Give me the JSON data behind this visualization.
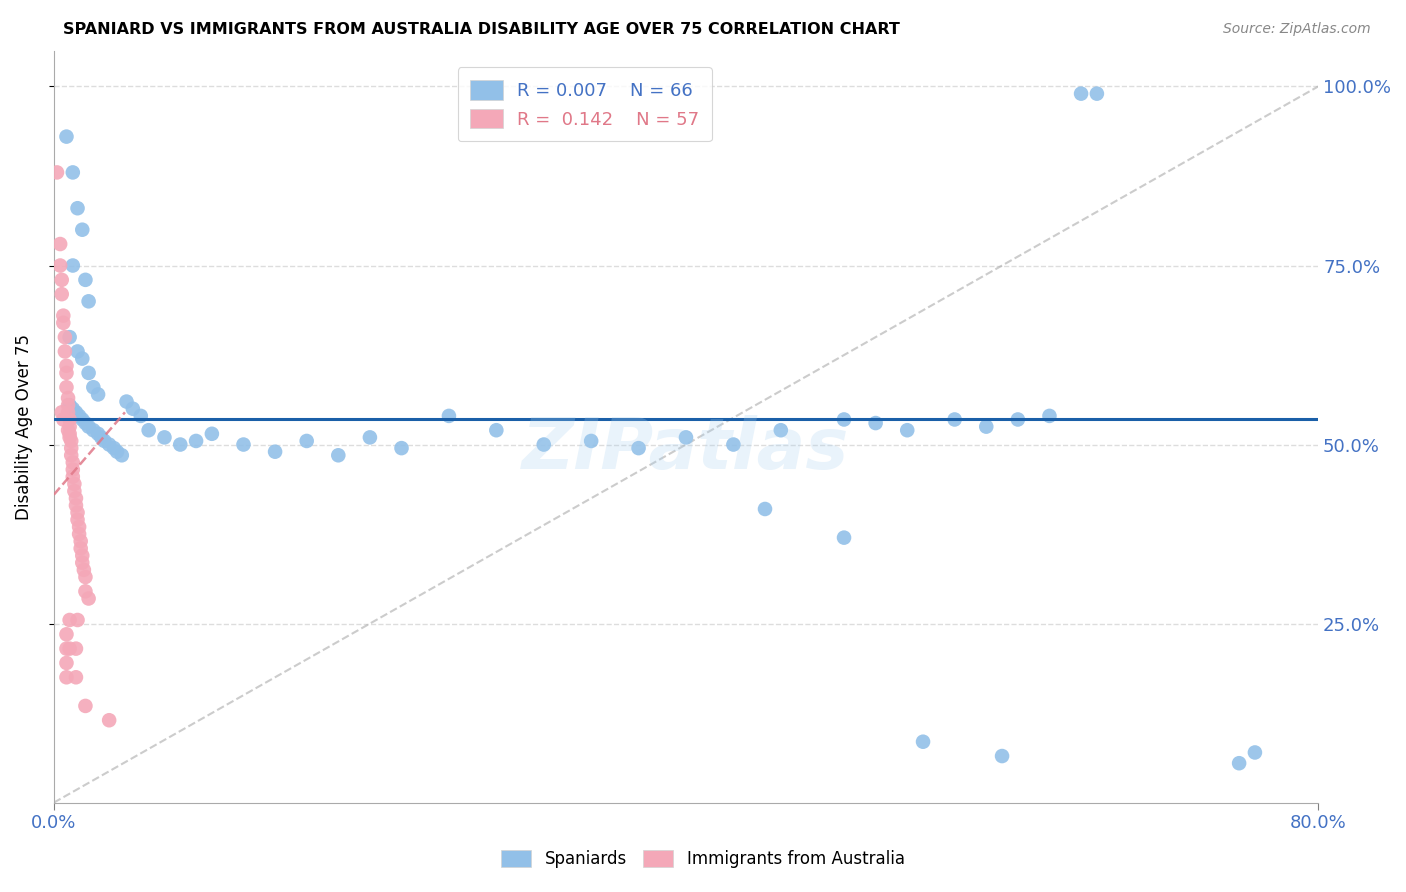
{
  "title": "SPANIARD VS IMMIGRANTS FROM AUSTRALIA DISABILITY AGE OVER 75 CORRELATION CHART",
  "source": "Source: ZipAtlas.com",
  "ylabel": "Disability Age Over 75",
  "watermark": "ZIPatlas",
  "blue_color": "#92c0e8",
  "pink_color": "#f4a8b8",
  "trendline_blue_color": "#1a5fa8",
  "trendline_pink_color": "#e07888",
  "grid_color": "#dddddd",
  "xmin": 0.0,
  "xmax": 0.8,
  "ymin": 0.0,
  "ymax": 1.05,
  "blue_trendline_y": 0.535,
  "blue_scatter": [
    [
      0.008,
      0.93
    ],
    [
      0.012,
      0.88
    ],
    [
      0.015,
      0.83
    ],
    [
      0.018,
      0.8
    ],
    [
      0.012,
      0.75
    ],
    [
      0.02,
      0.73
    ],
    [
      0.022,
      0.7
    ],
    [
      0.01,
      0.65
    ],
    [
      0.015,
      0.63
    ],
    [
      0.018,
      0.62
    ],
    [
      0.022,
      0.6
    ],
    [
      0.025,
      0.58
    ],
    [
      0.028,
      0.57
    ],
    [
      0.01,
      0.555
    ],
    [
      0.012,
      0.55
    ],
    [
      0.014,
      0.545
    ],
    [
      0.016,
      0.54
    ],
    [
      0.018,
      0.535
    ],
    [
      0.02,
      0.53
    ],
    [
      0.022,
      0.525
    ],
    [
      0.025,
      0.52
    ],
    [
      0.028,
      0.515
    ],
    [
      0.03,
      0.51
    ],
    [
      0.032,
      0.505
    ],
    [
      0.035,
      0.5
    ],
    [
      0.038,
      0.495
    ],
    [
      0.04,
      0.49
    ],
    [
      0.043,
      0.485
    ],
    [
      0.046,
      0.56
    ],
    [
      0.05,
      0.55
    ],
    [
      0.055,
      0.54
    ],
    [
      0.06,
      0.52
    ],
    [
      0.07,
      0.51
    ],
    [
      0.08,
      0.5
    ],
    [
      0.09,
      0.505
    ],
    [
      0.1,
      0.515
    ],
    [
      0.12,
      0.5
    ],
    [
      0.14,
      0.49
    ],
    [
      0.16,
      0.505
    ],
    [
      0.18,
      0.485
    ],
    [
      0.2,
      0.51
    ],
    [
      0.22,
      0.495
    ],
    [
      0.25,
      0.54
    ],
    [
      0.28,
      0.52
    ],
    [
      0.31,
      0.5
    ],
    [
      0.34,
      0.505
    ],
    [
      0.37,
      0.495
    ],
    [
      0.4,
      0.51
    ],
    [
      0.43,
      0.5
    ],
    [
      0.46,
      0.52
    ],
    [
      0.5,
      0.535
    ],
    [
      0.52,
      0.53
    ],
    [
      0.54,
      0.52
    ],
    [
      0.57,
      0.535
    ],
    [
      0.59,
      0.525
    ],
    [
      0.61,
      0.535
    ],
    [
      0.63,
      0.54
    ],
    [
      0.65,
      0.99
    ],
    [
      0.66,
      0.99
    ],
    [
      0.45,
      0.41
    ],
    [
      0.5,
      0.37
    ],
    [
      0.55,
      0.085
    ],
    [
      0.6,
      0.065
    ],
    [
      0.75,
      0.055
    ],
    [
      0.76,
      0.07
    ]
  ],
  "pink_scatter": [
    [
      0.002,
      0.88
    ],
    [
      0.004,
      0.78
    ],
    [
      0.004,
      0.75
    ],
    [
      0.005,
      0.73
    ],
    [
      0.005,
      0.71
    ],
    [
      0.006,
      0.68
    ],
    [
      0.006,
      0.67
    ],
    [
      0.007,
      0.65
    ],
    [
      0.007,
      0.63
    ],
    [
      0.008,
      0.61
    ],
    [
      0.008,
      0.6
    ],
    [
      0.008,
      0.58
    ],
    [
      0.009,
      0.565
    ],
    [
      0.009,
      0.555
    ],
    [
      0.009,
      0.545
    ],
    [
      0.01,
      0.535
    ],
    [
      0.01,
      0.525
    ],
    [
      0.01,
      0.515
    ],
    [
      0.011,
      0.505
    ],
    [
      0.011,
      0.495
    ],
    [
      0.011,
      0.485
    ],
    [
      0.012,
      0.475
    ],
    [
      0.012,
      0.465
    ],
    [
      0.012,
      0.455
    ],
    [
      0.013,
      0.445
    ],
    [
      0.013,
      0.435
    ],
    [
      0.014,
      0.425
    ],
    [
      0.014,
      0.415
    ],
    [
      0.015,
      0.405
    ],
    [
      0.015,
      0.395
    ],
    [
      0.016,
      0.385
    ],
    [
      0.016,
      0.375
    ],
    [
      0.017,
      0.365
    ],
    [
      0.017,
      0.355
    ],
    [
      0.018,
      0.345
    ],
    [
      0.018,
      0.335
    ],
    [
      0.019,
      0.325
    ],
    [
      0.02,
      0.315
    ],
    [
      0.005,
      0.545
    ],
    [
      0.006,
      0.535
    ],
    [
      0.009,
      0.52
    ],
    [
      0.01,
      0.51
    ],
    [
      0.02,
      0.295
    ],
    [
      0.022,
      0.285
    ],
    [
      0.01,
      0.255
    ],
    [
      0.014,
      0.215
    ],
    [
      0.014,
      0.175
    ],
    [
      0.02,
      0.135
    ],
    [
      0.035,
      0.115
    ],
    [
      0.015,
      0.255
    ],
    [
      0.008,
      0.235
    ],
    [
      0.008,
      0.215
    ],
    [
      0.008,
      0.195
    ],
    [
      0.008,
      0.175
    ],
    [
      0.01,
      0.215
    ]
  ],
  "pink_trendline_x": [
    0.0,
    0.045
  ],
  "pink_trendline_y": [
    0.43,
    0.545
  ]
}
